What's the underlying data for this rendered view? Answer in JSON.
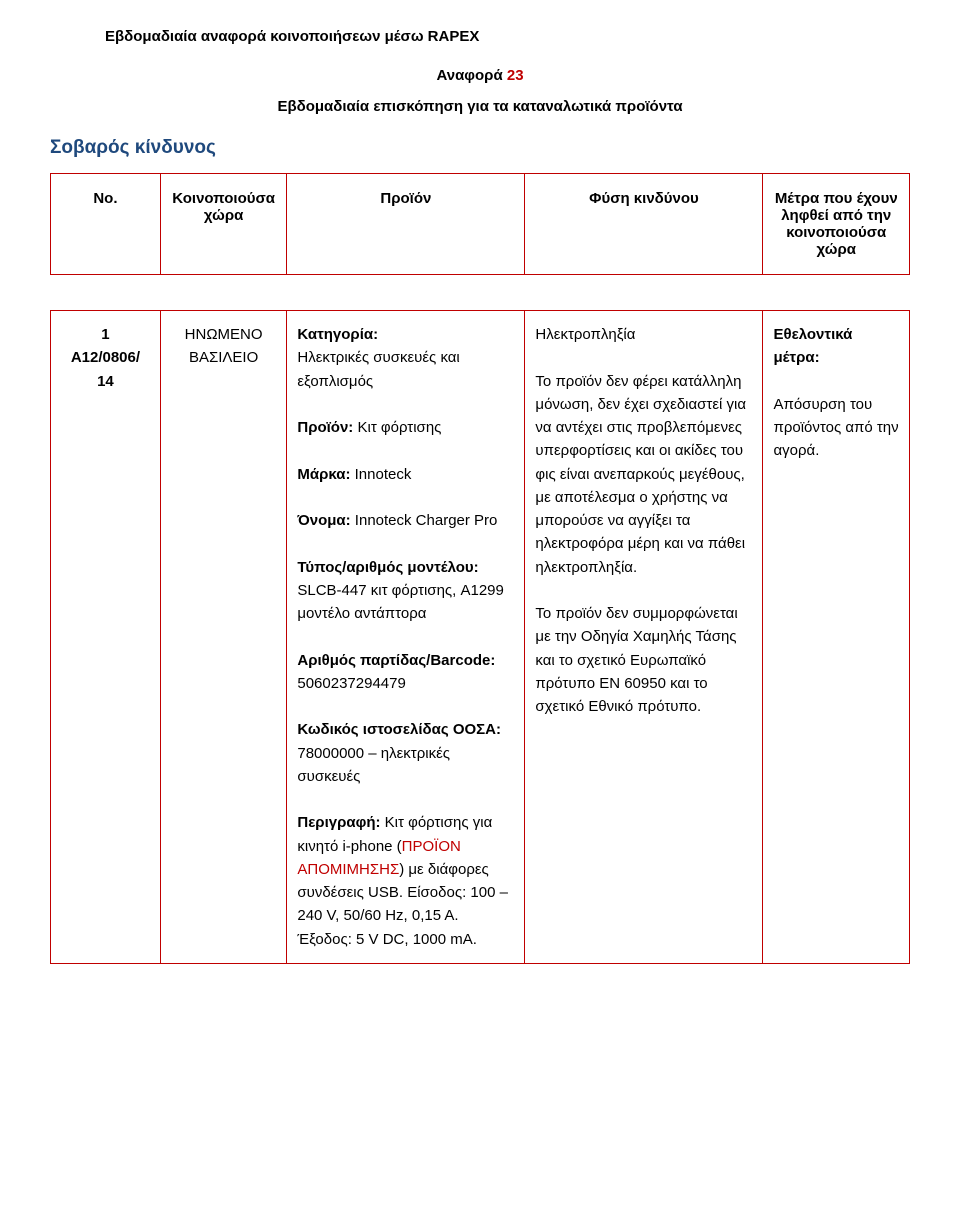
{
  "header": {
    "title": "Εβδομαδιαία αναφορά κοινοποιήσεων μέσω RAPEX",
    "report_label": "Αναφορά",
    "report_number": "23",
    "subtitle": "Εβδομαδιαία επισκόπηση για τα καταναλωτικά προϊόντα",
    "risk_level": "Σοβαρός κίνδυνος"
  },
  "table": {
    "columns": [
      "No.",
      "Κοινοποιούσα χώρα",
      "Προϊόν",
      "Φύση κινδύνου",
      "Μέτρα που έχουν ληφθεί από την κοινοποιούσα χώρα"
    ],
    "row": {
      "no_line1": "1",
      "no_line2": "A12/0806/",
      "no_line3": "14",
      "country_line1": "ΗΝΩΜΕΝΟ",
      "country_line2": "ΒΑΣΙΛΕΙΟ",
      "product": {
        "category_label": "Κατηγορία:",
        "category_value": "Ηλεκτρικές συσκευές και εξοπλισμός",
        "product_label": "Προϊόν:",
        "product_value": " Κιτ φόρτισης",
        "brand_label": "Μάρκα:",
        "brand_value": " Innoteck",
        "name_label": "Όνομα:",
        "name_value": " Innoteck Charger Pro",
        "model_label": "Τύπος/αριθμός μοντέλου:",
        "model_value": " SLCB-447 κιτ φόρτισης, A1299 μοντέλο αντάπτορα",
        "batch_label": "Αριθμός παρτίδας/Barcode:",
        "batch_value": "5060237294479",
        "oecd_label": "Κωδικός ιστοσελίδας ΟΟΣΑ:",
        "oecd_value": " 78000000 – ηλεκτρικές συσκευές",
        "desc_label": "Περιγραφή:",
        "desc_value_before": " Κιτ φόρτισης για κινητό i-phone (",
        "desc_value_red": "ΠΡΟΪΟΝ ΑΠΟΜΙΜΗΣΗΣ",
        "desc_value_after": ") με διάφορες συνδέσεις USB. Είσοδος: 100 – 240 V, 50/60 Hz, 0,15 A. Έξοδος: 5 V DC, 1000 mA."
      },
      "risk": {
        "heading": "Ηλεκτροπληξία",
        "para1": "Το προϊόν δεν φέρει κατάλληλη μόνωση, δεν έχει σχεδιαστεί για να αντέχει στις προβλεπόμενες υπερφορτίσεις και οι ακίδες του φις είναι ανεπαρκούς μεγέθους, με αποτέλεσμα ο χρήστης να μπορούσε να αγγίξει τα ηλεκτροφόρα μέρη και να πάθει ηλεκτροπληξία.",
        "para2": "Το προϊόν δεν συμμορφώνεται με την Οδηγία Χαμηλής Τάσης και το σχετικό Ευρωπαϊκό πρότυπο EN 60950 και το σχετικό Εθνικό πρότυπο."
      },
      "measures": {
        "heading": "Εθελοντικά μέτρα:",
        "text": "Απόσυρση του προϊόντος από την αγορά."
      }
    }
  },
  "style": {
    "border_color": "#c00000",
    "risk_label_color": "#1f497d",
    "text_color": "#000000",
    "background_color": "#ffffff",
    "font_family": "Arial",
    "base_font_size": 15,
    "risk_label_font_size": 19,
    "line_height": 1.55
  }
}
